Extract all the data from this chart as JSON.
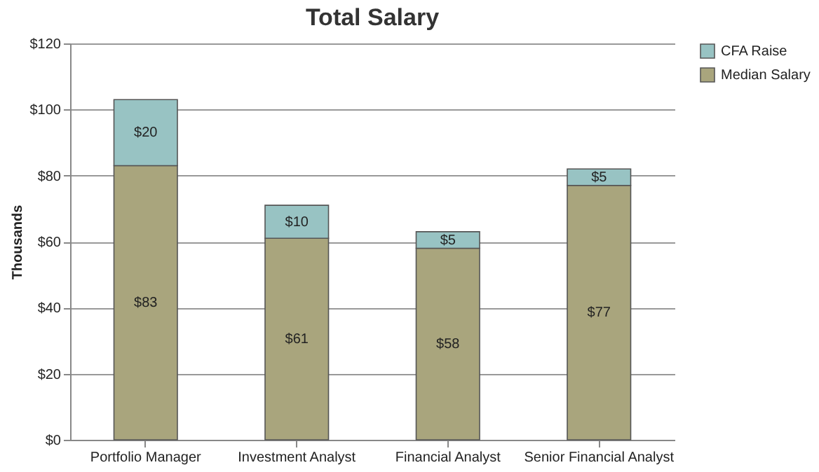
{
  "chart_data": {
    "type": "bar",
    "title": "Total Salary",
    "ylabel": "Thousands",
    "stacked": true,
    "categories": [
      "Portfolio Manager",
      "Investment Analyst",
      "Financial Analyst",
      "Senior Financial Analyst"
    ],
    "series": [
      {
        "name": "Median Salary",
        "color": "#a9a57d",
        "values": [
          83,
          61,
          58,
          77
        ],
        "value_labels": [
          "$83",
          "$61",
          "$58",
          "$77"
        ]
      },
      {
        "name": "CFA Raise",
        "color": "#98c3c3",
        "values": [
          20,
          10,
          5,
          5
        ],
        "value_labels": [
          "$20",
          "$10",
          "$5",
          "$5"
        ]
      }
    ],
    "ylim": [
      0,
      120
    ],
    "yticks": [
      {
        "value": 0,
        "label": "$0"
      },
      {
        "value": 20,
        "label": "$20"
      },
      {
        "value": 40,
        "label": "$40"
      },
      {
        "value": 60,
        "label": "$60"
      },
      {
        "value": 80,
        "label": "$80"
      },
      {
        "value": 100,
        "label": "$100"
      },
      {
        "value": 120,
        "label": "$120"
      }
    ],
    "grid": "y",
    "legend": "right"
  }
}
